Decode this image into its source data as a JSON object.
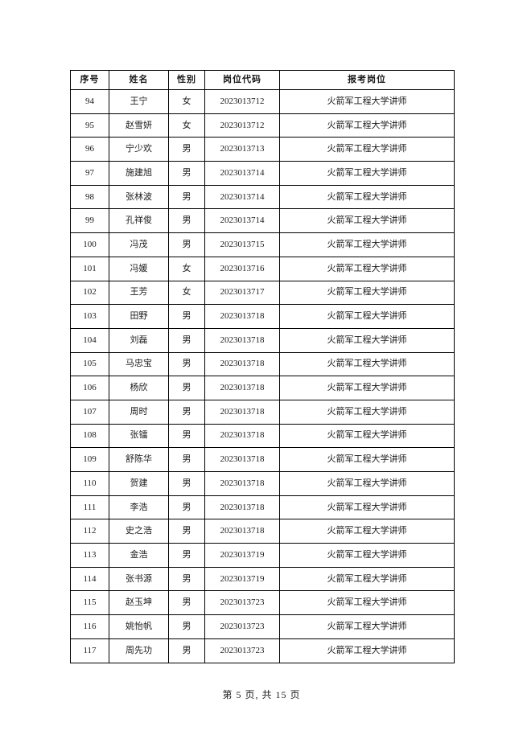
{
  "table": {
    "headers": [
      "序号",
      "姓名",
      "性别",
      "岗位代码",
      "报考岗位"
    ],
    "rows": [
      [
        "94",
        "王宁",
        "女",
        "2023013712",
        "火箭军工程大学讲师"
      ],
      [
        "95",
        "赵雪妍",
        "女",
        "2023013712",
        "火箭军工程大学讲师"
      ],
      [
        "96",
        "宁少欢",
        "男",
        "2023013713",
        "火箭军工程大学讲师"
      ],
      [
        "97",
        "施建旭",
        "男",
        "2023013714",
        "火箭军工程大学讲师"
      ],
      [
        "98",
        "张林波",
        "男",
        "2023013714",
        "火箭军工程大学讲师"
      ],
      [
        "99",
        "孔祥俊",
        "男",
        "2023013714",
        "火箭军工程大学讲师"
      ],
      [
        "100",
        "冯茂",
        "男",
        "2023013715",
        "火箭军工程大学讲师"
      ],
      [
        "101",
        "冯媛",
        "女",
        "2023013716",
        "火箭军工程大学讲师"
      ],
      [
        "102",
        "王芳",
        "女",
        "2023013717",
        "火箭军工程大学讲师"
      ],
      [
        "103",
        "田野",
        "男",
        "2023013718",
        "火箭军工程大学讲师"
      ],
      [
        "104",
        "刘磊",
        "男",
        "2023013718",
        "火箭军工程大学讲师"
      ],
      [
        "105",
        "马忠宝",
        "男",
        "2023013718",
        "火箭军工程大学讲师"
      ],
      [
        "106",
        "杨欣",
        "男",
        "2023013718",
        "火箭军工程大学讲师"
      ],
      [
        "107",
        "周时",
        "男",
        "2023013718",
        "火箭军工程大学讲师"
      ],
      [
        "108",
        "张镭",
        "男",
        "2023013718",
        "火箭军工程大学讲师"
      ],
      [
        "109",
        "舒陈华",
        "男",
        "2023013718",
        "火箭军工程大学讲师"
      ],
      [
        "110",
        "贺建",
        "男",
        "2023013718",
        "火箭军工程大学讲师"
      ],
      [
        "111",
        "李浩",
        "男",
        "2023013718",
        "火箭军工程大学讲师"
      ],
      [
        "112",
        "史之浩",
        "男",
        "2023013718",
        "火箭军工程大学讲师"
      ],
      [
        "113",
        "金浩",
        "男",
        "2023013719",
        "火箭军工程大学讲师"
      ],
      [
        "114",
        "张书源",
        "男",
        "2023013719",
        "火箭军工程大学讲师"
      ],
      [
        "115",
        "赵玉坤",
        "男",
        "2023013723",
        "火箭军工程大学讲师"
      ],
      [
        "116",
        "姚怡帆",
        "男",
        "2023013723",
        "火箭军工程大学讲师"
      ],
      [
        "117",
        "周先功",
        "男",
        "2023013723",
        "火箭军工程大学讲师"
      ]
    ]
  },
  "footer": {
    "page_info": "第 5 页, 共 15 页"
  },
  "colors": {
    "border": "#000000",
    "text": "#1a1a1a",
    "background": "#ffffff"
  }
}
